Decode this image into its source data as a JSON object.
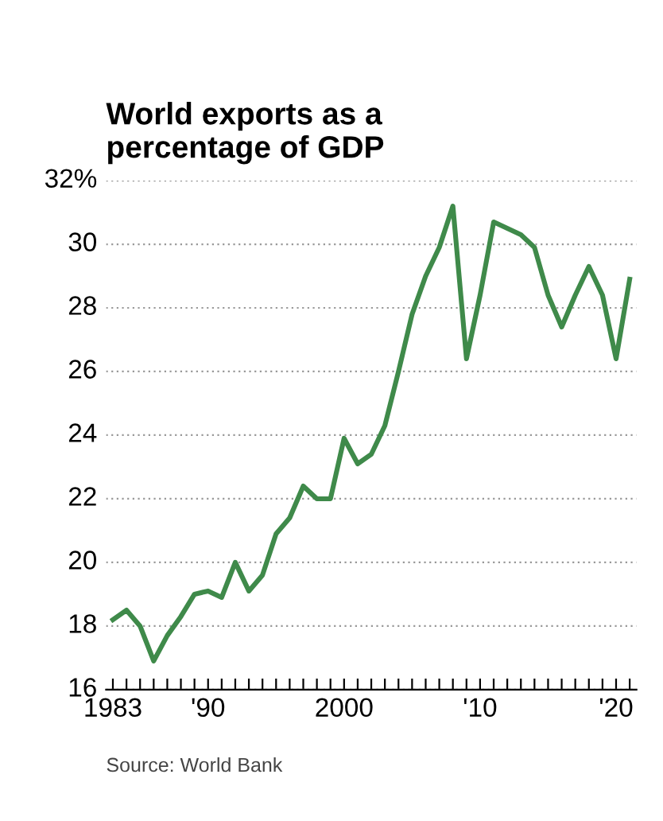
{
  "chart_data": {
    "type": "line",
    "title": "World exports as a\npercentage of GDP",
    "x": [
      1983,
      1984,
      1985,
      1986,
      1987,
      1988,
      1989,
      1990,
      1991,
      1992,
      1993,
      1994,
      1995,
      1996,
      1997,
      1998,
      1999,
      2000,
      2001,
      2002,
      2003,
      2004,
      2005,
      2006,
      2007,
      2008,
      2009,
      2010,
      2011,
      2012,
      2013,
      2014,
      2015,
      2016,
      2017,
      2018,
      2019,
      2020,
      2021
    ],
    "series": [
      {
        "color": "#3f8a4a",
        "values": [
          18.2,
          18.5,
          18.0,
          16.9,
          17.7,
          18.3,
          19.0,
          19.1,
          18.9,
          20.0,
          19.1,
          19.6,
          20.9,
          21.4,
          22.4,
          22.0,
          22.0,
          23.9,
          23.1,
          23.4,
          24.3,
          26.0,
          27.8,
          29.0,
          29.9,
          31.2,
          26.4,
          28.4,
          30.7,
          30.5,
          30.3,
          29.9,
          28.4,
          27.4,
          28.4,
          29.3,
          28.4,
          26.4,
          28.9
        ]
      }
    ],
    "xlim": [
      1982.5,
      2021.5
    ],
    "xticks": [
      {
        "value": 1983,
        "label": "1983"
      },
      {
        "value": 1984,
        "label": null
      },
      {
        "value": 1985,
        "label": null
      },
      {
        "value": 1986,
        "label": null
      },
      {
        "value": 1987,
        "label": null
      },
      {
        "value": 1988,
        "label": null
      },
      {
        "value": 1989,
        "label": null
      },
      {
        "value": 1990,
        "label": "'90"
      },
      {
        "value": 1991,
        "label": null
      },
      {
        "value": 1992,
        "label": null
      },
      {
        "value": 1993,
        "label": null
      },
      {
        "value": 1994,
        "label": null
      },
      {
        "value": 1995,
        "label": null
      },
      {
        "value": 1996,
        "label": null
      },
      {
        "value": 1997,
        "label": null
      },
      {
        "value": 1998,
        "label": null
      },
      {
        "value": 1999,
        "label": null
      },
      2000,
      {
        "value": 2001,
        "label": null
      },
      {
        "value": 2002,
        "label": null
      },
      {
        "value": 2003,
        "label": null
      },
      {
        "value": 2004,
        "label": null
      },
      {
        "value": 2005,
        "label": null
      },
      {
        "value": 2006,
        "label": null
      },
      {
        "value": 2007,
        "label": null
      },
      {
        "value": 2008,
        "label": null
      },
      {
        "value": 2009,
        "label": null
      },
      {
        "value": 2010,
        "label": "'10"
      },
      {
        "value": 2011,
        "label": null
      },
      {
        "value": 2012,
        "label": null
      },
      {
        "value": 2013,
        "label": null
      },
      {
        "value": 2014,
        "label": null
      },
      {
        "value": 2015,
        "label": null
      },
      {
        "value": 2016,
        "label": null
      },
      {
        "value": 2017,
        "label": null
      },
      {
        "value": 2018,
        "label": null
      },
      {
        "value": 2019,
        "label": null
      },
      {
        "value": 2020,
        "label": "'20"
      },
      {
        "value": 2021,
        "label": null
      }
    ],
    "ylim": [
      16,
      32
    ],
    "yticks": [
      16,
      18,
      20,
      22,
      24,
      26,
      28,
      30,
      {
        "value": 32,
        "label": "32%"
      }
    ],
    "grid": "y",
    "line_style": "solid",
    "marker": "none",
    "annotations": [
      "Source: World Bank"
    ]
  }
}
